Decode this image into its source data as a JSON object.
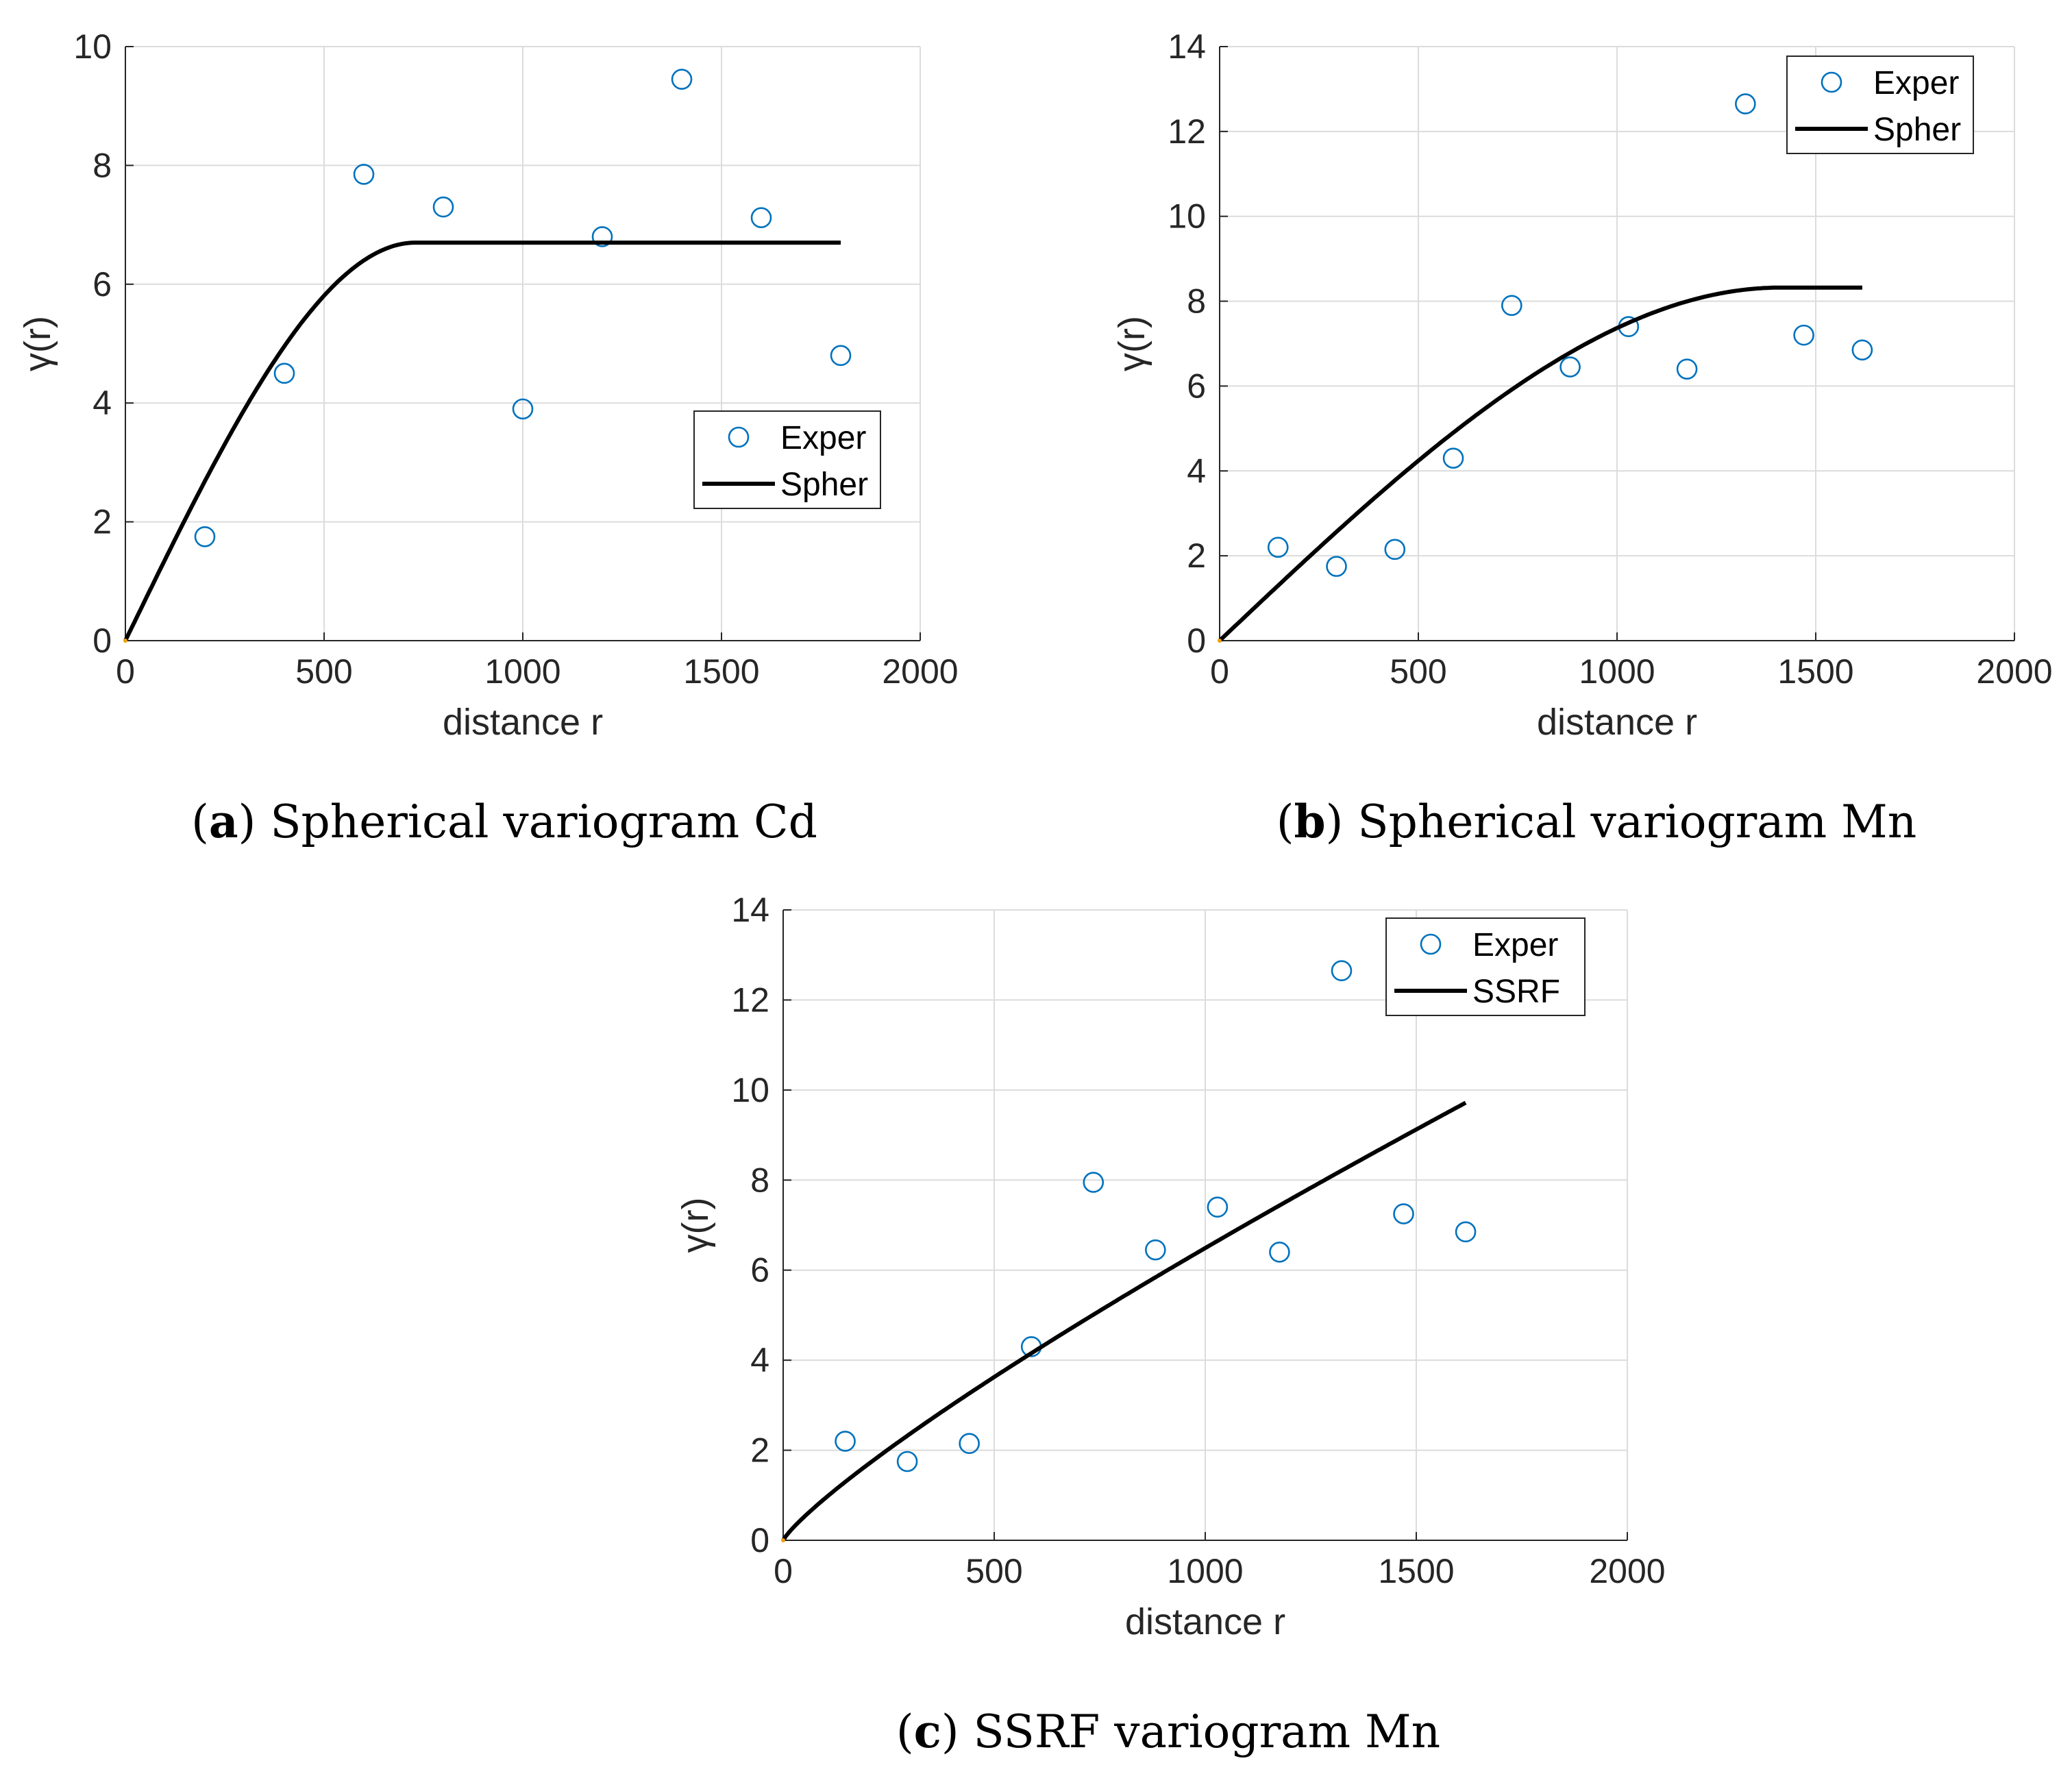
{
  "chart_data": [
    {
      "type": "scatter",
      "panel": "a",
      "caption_letter": "a",
      "caption_text": "Spherical variogram Cd",
      "xlabel": "distance r",
      "ylabel": "γ(r)",
      "xlim": [
        0,
        2000
      ],
      "ylim": [
        0,
        10
      ],
      "xticks": [
        0,
        500,
        1000,
        1500,
        2000
      ],
      "yticks": [
        0,
        2,
        4,
        6,
        8,
        10
      ],
      "grid": true,
      "legend_position": "middle-right",
      "series": [
        {
          "name": "Exper",
          "kind": "markers",
          "color": "#0072BD",
          "x": [
            200,
            400,
            600,
            800,
            1000,
            1200,
            1400,
            1600,
            1800
          ],
          "y": [
            1.75,
            4.5,
            7.85,
            7.3,
            3.9,
            6.8,
            9.45,
            7.12,
            4.8
          ]
        },
        {
          "name": "Spher",
          "kind": "line",
          "color": "#000000",
          "model": "spherical",
          "nugget": 0,
          "sill": 6.7,
          "range": 730,
          "x_max": 1800
        }
      ]
    },
    {
      "type": "scatter",
      "panel": "b",
      "caption_letter": "b",
      "caption_text": "Spherical variogram Mn",
      "xlabel": "distance r",
      "ylabel": "γ(r)",
      "xlim": [
        0,
        2000
      ],
      "ylim": [
        0,
        14
      ],
      "xticks": [
        0,
        500,
        1000,
        1500,
        2000
      ],
      "yticks": [
        0,
        2,
        4,
        6,
        8,
        10,
        12,
        14
      ],
      "grid": true,
      "legend_position": "top-right",
      "series": [
        {
          "name": "Exper",
          "kind": "markers",
          "color": "#0072BD",
          "x": [
            147,
            294,
            441,
            588,
            735,
            882,
            1029,
            1176,
            1323,
            1470,
            1617
          ],
          "y": [
            2.2,
            1.75,
            2.15,
            4.3,
            7.9,
            6.45,
            7.4,
            6.4,
            12.65,
            7.2,
            6.85
          ]
        },
        {
          "name": "Spher",
          "kind": "line",
          "color": "#000000",
          "model": "spherical",
          "nugget": 0,
          "sill": 8.32,
          "range": 1410,
          "x_max": 1617
        }
      ]
    },
    {
      "type": "scatter",
      "panel": "c",
      "caption_letter": "c",
      "caption_text": "SSRF variogram Mn",
      "xlabel": "distance r",
      "ylabel": "γ(r)",
      "xlim": [
        0,
        2000
      ],
      "ylim": [
        0,
        14
      ],
      "xticks": [
        0,
        500,
        1000,
        1500,
        2000
      ],
      "yticks": [
        0,
        2,
        4,
        6,
        8,
        10,
        12,
        14
      ],
      "grid": true,
      "legend_position": "top-right",
      "series": [
        {
          "name": "Exper",
          "kind": "markers",
          "color": "#0072BD",
          "x": [
            147,
            294,
            441,
            588,
            735,
            882,
            1029,
            1176,
            1323,
            1470,
            1617
          ],
          "y": [
            2.2,
            1.75,
            2.15,
            4.3,
            7.95,
            6.45,
            7.4,
            6.4,
            12.65,
            7.25,
            6.85
          ]
        },
        {
          "name": "SSRF",
          "kind": "line",
          "color": "#000000",
          "model": "power",
          "coefficient": 0.0196,
          "exponent": 0.84,
          "x_max": 1617
        }
      ]
    }
  ]
}
